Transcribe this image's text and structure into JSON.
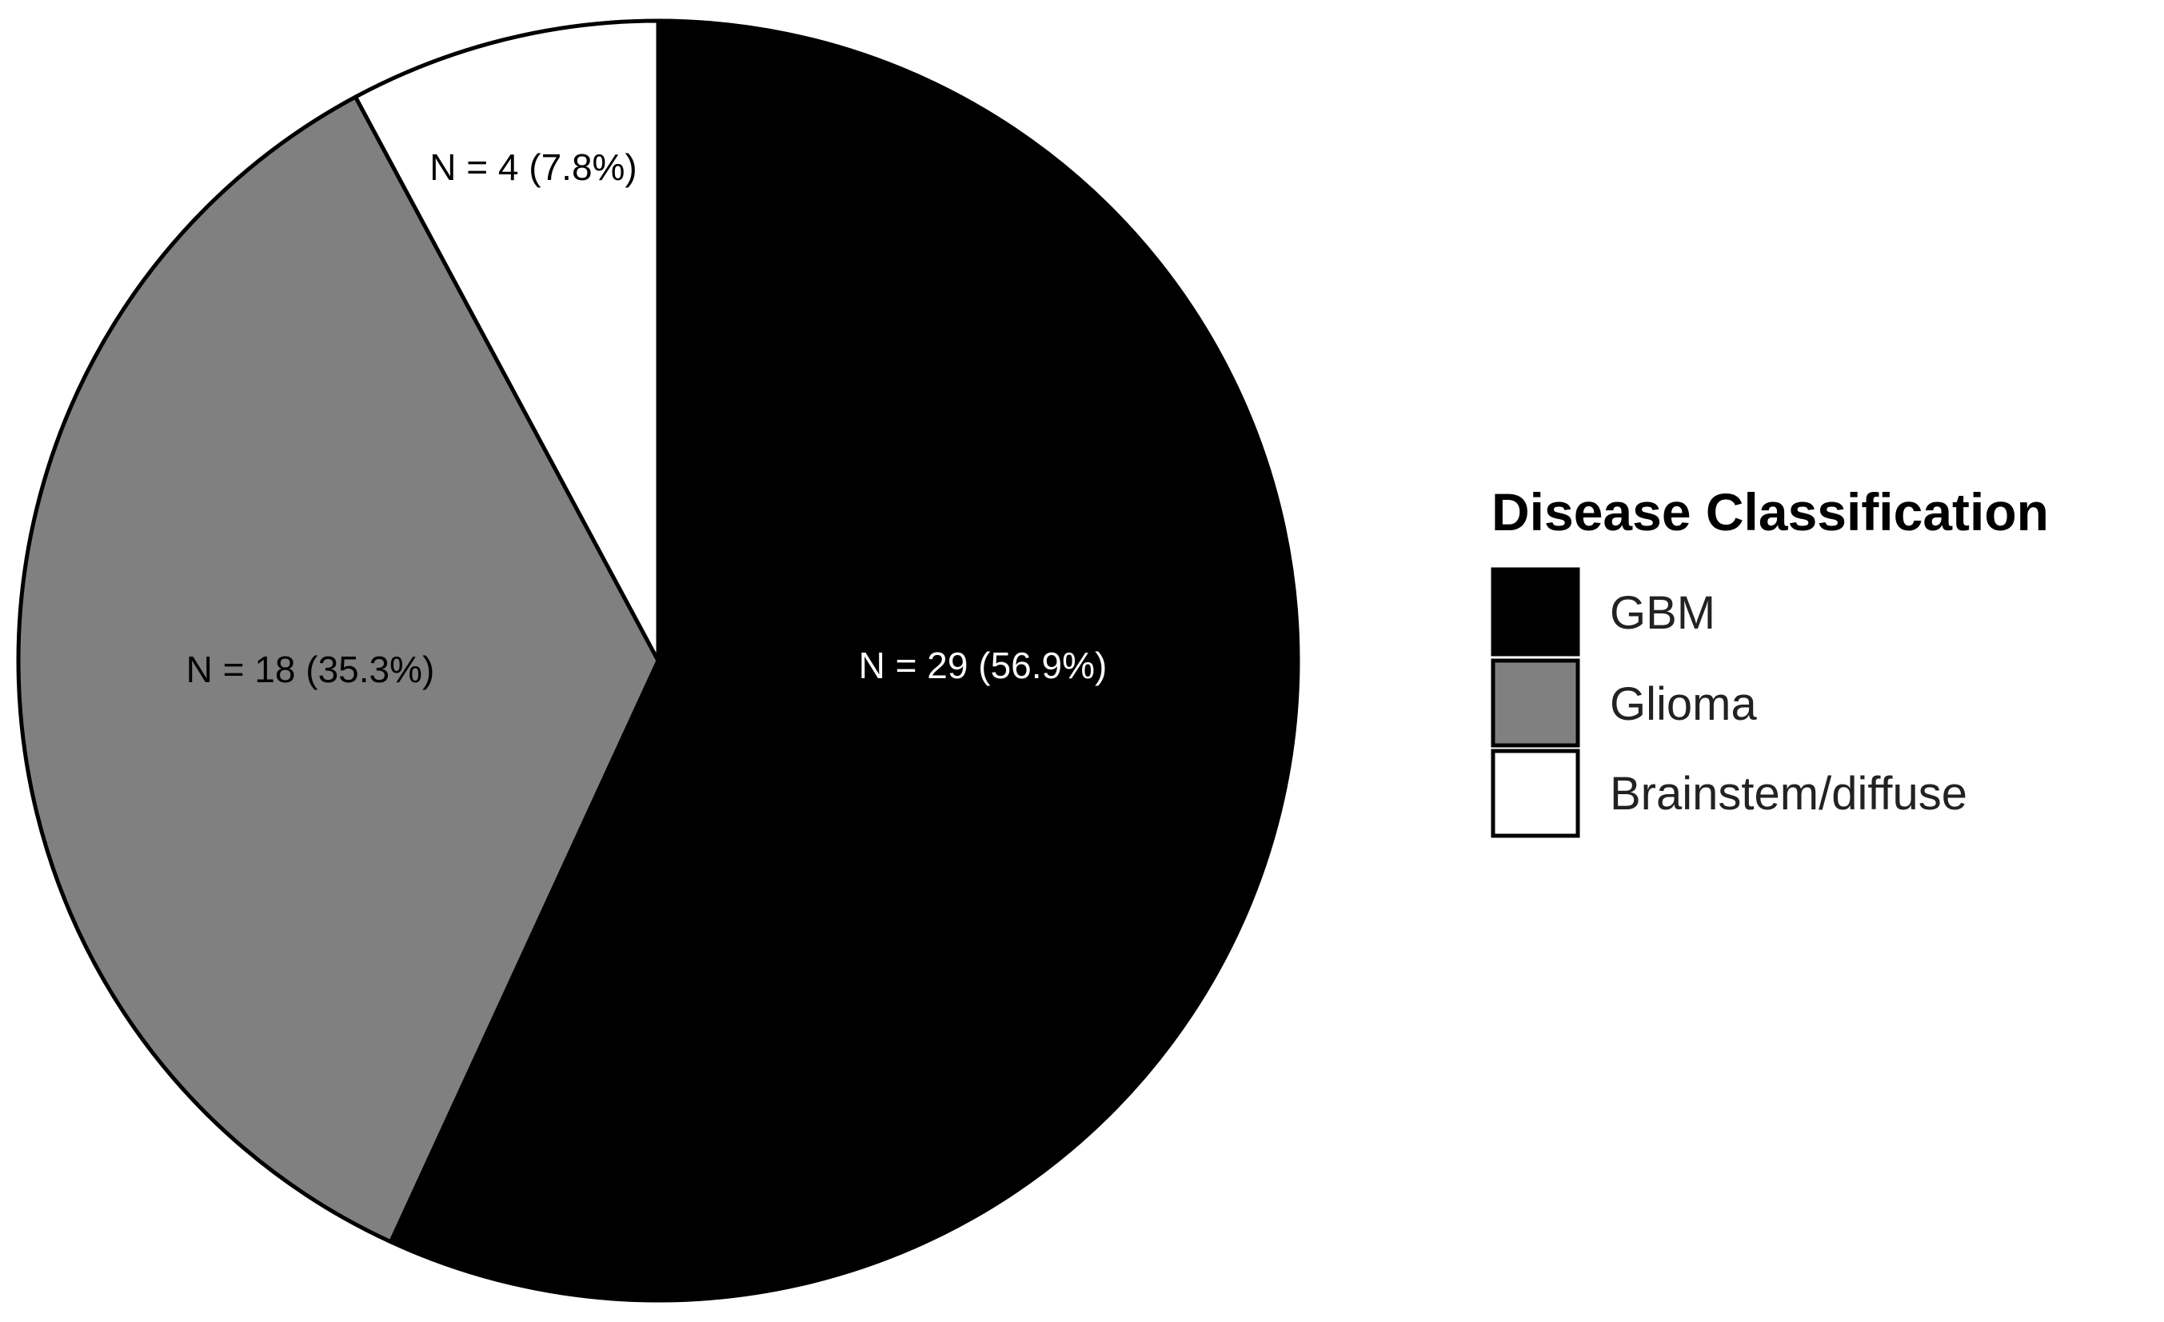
{
  "chart_data": {
    "type": "pie",
    "title": "",
    "legend_title": "Disease Classification",
    "legend_position": "right",
    "start": "12 o'clock",
    "direction": "clockwise",
    "slices": [
      {
        "name": "GBM",
        "count": 29,
        "percent": 56.9,
        "label": "N = 29 (56.9%)",
        "color": "#000000",
        "label_color": "#ffffff"
      },
      {
        "name": "Glioma",
        "count": 18,
        "percent": 35.3,
        "label": "N = 18 (35.3%)",
        "color": "#808080",
        "label_color": "#000000"
      },
      {
        "name": "Brainstem/diffuse",
        "count": 4,
        "percent": 7.8,
        "label": "N = 4 (7.8%)",
        "color": "#ffffff",
        "label_color": "#000000"
      }
    ]
  }
}
